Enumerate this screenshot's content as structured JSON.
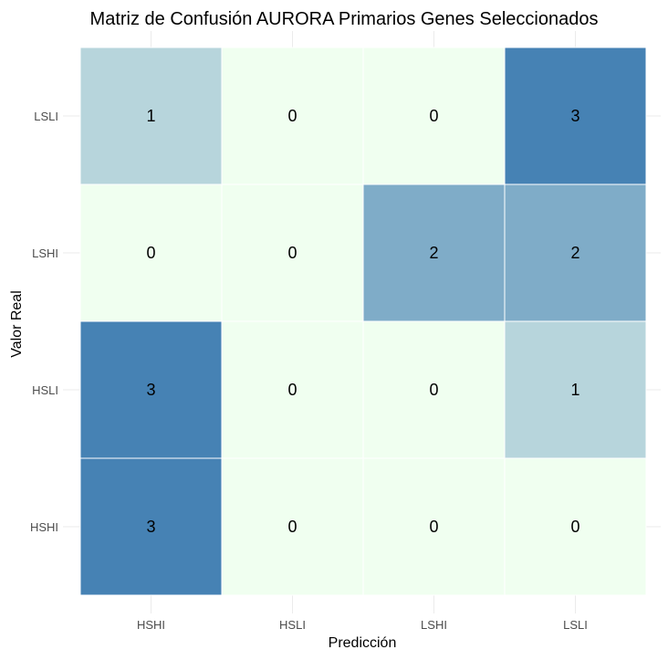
{
  "chart_data": {
    "type": "heatmap",
    "title": "Matriz de Confusión AURORA Primarios Genes Seleccionados",
    "xlabel": "Predicción",
    "ylabel": "Valor Real",
    "x_categories": [
      "HSHI",
      "HSLI",
      "LSHI",
      "LSLI"
    ],
    "y_categories": [
      "HSHI",
      "HSLI",
      "LSHI",
      "LSLI"
    ],
    "values": [
      [
        3,
        0,
        0,
        0
      ],
      [
        3,
        0,
        0,
        1
      ],
      [
        0,
        0,
        2,
        2
      ],
      [
        1,
        0,
        0,
        3
      ]
    ],
    "color_scale": {
      "low": "#f0fff0",
      "high": "#4682b4",
      "min": 0,
      "max": 3
    },
    "cell_border_color": "#ffffff",
    "legend": "none",
    "grid": true
  }
}
